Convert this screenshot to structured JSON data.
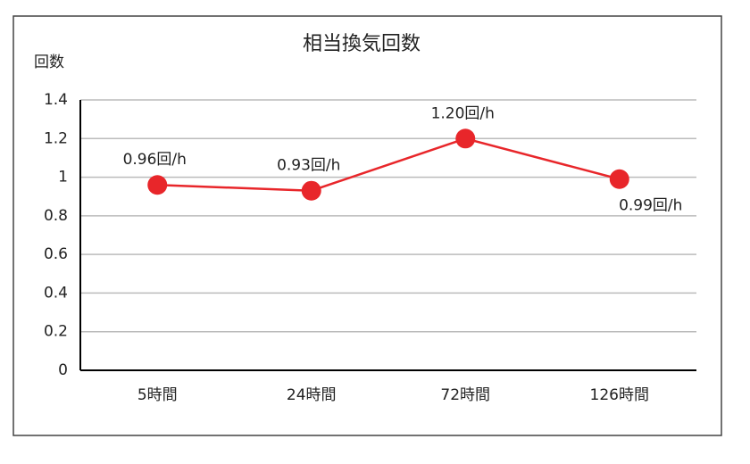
{
  "chart_data": {
    "type": "line",
    "title": "相当換気回数",
    "y_label": "回数",
    "categories": [
      "5時間",
      "24時間",
      "72時間",
      "126時間"
    ],
    "series": [
      {
        "name": "相当換気回数",
        "color": "#e8262a",
        "values": [
          0.96,
          0.93,
          1.2,
          0.99
        ],
        "value_labels": [
          "0.96回/h",
          "0.93回/h",
          "1.20回/h",
          "0.99回/h"
        ]
      }
    ],
    "ylim": [
      0,
      1.4
    ],
    "yticks": [
      0,
      0.2,
      0.4,
      0.6,
      0.8,
      1,
      1.2,
      1.4
    ],
    "grid": true
  }
}
